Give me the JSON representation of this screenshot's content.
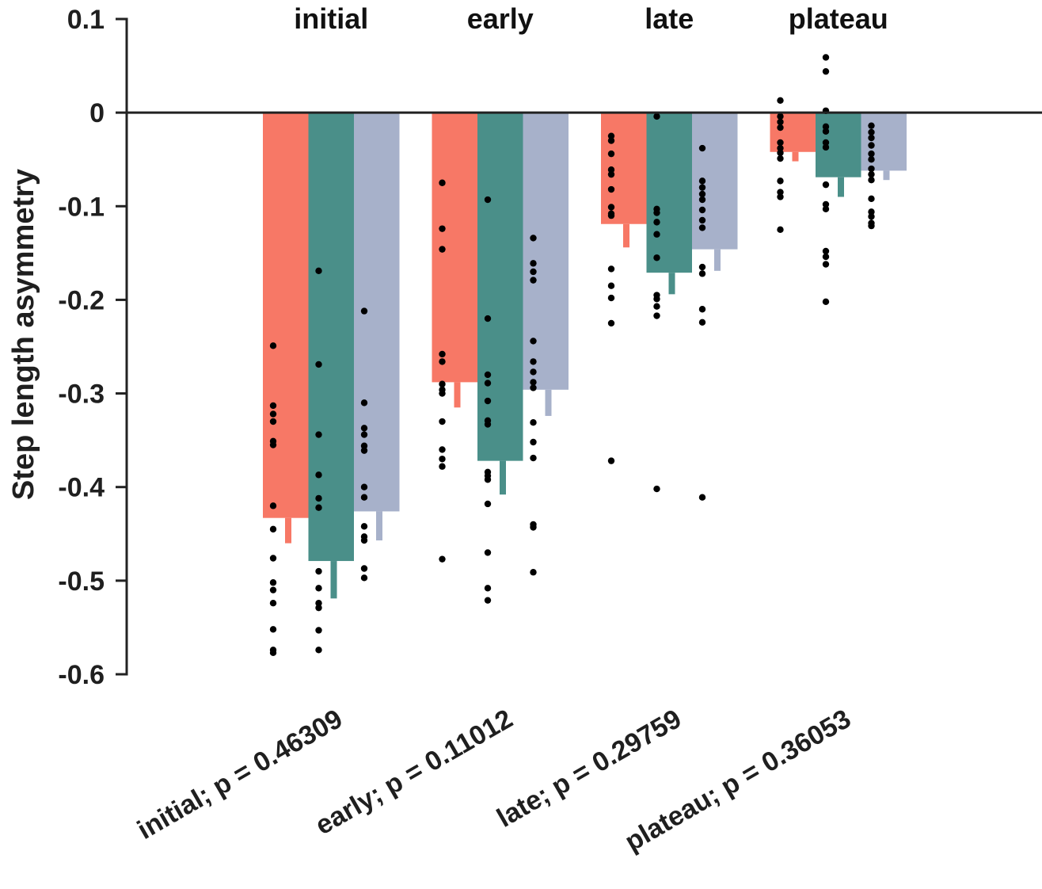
{
  "chart_data": {
    "type": "bar",
    "ylabel": "Step length asymmetry",
    "xlabel": "",
    "ylim": [
      -0.6,
      0.1
    ],
    "yticks": [
      0.1,
      0,
      -0.1,
      -0.2,
      -0.3,
      -0.4,
      -0.5,
      -0.6
    ],
    "ytick_labels": [
      "0.1",
      "0",
      "-0.1",
      "-0.2",
      "-0.3",
      "-0.4",
      "-0.5",
      "-0.6"
    ],
    "group_titles": [
      "initial",
      "early",
      "late",
      "plateau"
    ],
    "categories": [
      "initial; p = 0.46309",
      "early; p = 0.11012",
      "late; p = 0.29759",
      "plateau; p = 0.36053"
    ],
    "grid": false,
    "legend": "none",
    "series": [
      {
        "color": "#f77866",
        "values": [
          -0.433,
          -0.288,
          -0.119,
          -0.042
        ],
        "err_end": [
          -0.46,
          -0.315,
          -0.144,
          -0.052
        ],
        "points": [
          [
            -0.249,
            -0.313,
            -0.322,
            -0.33,
            -0.351,
            -0.355,
            -0.42,
            -0.445,
            -0.476,
            -0.502,
            -0.51,
            -0.524,
            -0.552,
            -0.574,
            -0.577
          ],
          [
            -0.075,
            -0.124,
            -0.146,
            -0.258,
            -0.266,
            -0.29,
            -0.296,
            -0.3,
            -0.33,
            -0.36,
            -0.37,
            -0.378,
            -0.477
          ],
          [
            -0.025,
            -0.03,
            -0.044,
            -0.061,
            -0.066,
            -0.082,
            -0.101,
            -0.108,
            -0.11,
            -0.167,
            -0.185,
            -0.198,
            -0.225,
            -0.372
          ],
          [
            0.013,
            -0.004,
            -0.01,
            -0.016,
            -0.032,
            -0.038,
            -0.043,
            -0.049,
            -0.073,
            -0.085,
            -0.09,
            -0.125
          ]
        ]
      },
      {
        "color": "#4a8f89",
        "values": [
          -0.479,
          -0.372,
          -0.171,
          -0.069
        ],
        "err_end": [
          -0.519,
          -0.408,
          -0.194,
          -0.09
        ],
        "points": [
          [
            -0.169,
            -0.269,
            -0.344,
            -0.387,
            -0.412,
            -0.422,
            -0.49,
            -0.508,
            -0.524,
            -0.529,
            -0.553,
            -0.574
          ],
          [
            -0.093,
            -0.22,
            -0.28,
            -0.289,
            -0.308,
            -0.329,
            -0.333,
            -0.384,
            -0.388,
            -0.392,
            -0.418,
            -0.47,
            -0.508,
            -0.521
          ],
          [
            -0.004,
            -0.103,
            -0.107,
            -0.117,
            -0.13,
            -0.155,
            -0.195,
            -0.199,
            -0.207,
            -0.217,
            -0.402
          ],
          [
            0.059,
            0.044,
            0.002,
            -0.015,
            -0.02,
            -0.032,
            -0.037,
            -0.077,
            -0.098,
            -0.103,
            -0.148,
            -0.154,
            -0.162,
            -0.202
          ]
        ]
      },
      {
        "color": "#a7b1ca",
        "values": [
          -0.426,
          -0.296,
          -0.146,
          -0.062
        ],
        "err_end": [
          -0.457,
          -0.324,
          -0.169,
          -0.072
        ],
        "points": [
          [
            -0.212,
            -0.31,
            -0.337,
            -0.344,
            -0.356,
            -0.361,
            -0.4,
            -0.411,
            -0.442,
            -0.453,
            -0.457,
            -0.487,
            -0.497
          ],
          [
            -0.134,
            -0.161,
            -0.17,
            -0.179,
            -0.244,
            -0.266,
            -0.277,
            -0.288,
            -0.294,
            -0.331,
            -0.352,
            -0.369,
            -0.44,
            -0.443,
            -0.491
          ],
          [
            -0.038,
            -0.073,
            -0.08,
            -0.087,
            -0.093,
            -0.104,
            -0.115,
            -0.123,
            -0.165,
            -0.172,
            -0.21,
            -0.224,
            -0.411
          ],
          [
            -0.014,
            -0.021,
            -0.027,
            -0.035,
            -0.044,
            -0.05,
            -0.06,
            -0.066,
            -0.072,
            -0.092,
            -0.106,
            -0.111,
            -0.118,
            -0.121
          ]
        ]
      }
    ]
  }
}
